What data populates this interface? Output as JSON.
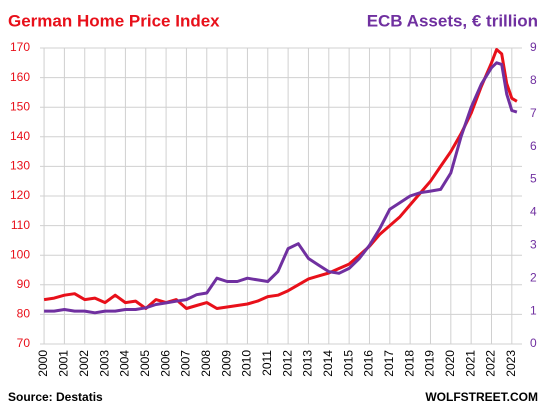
{
  "chart_data": {
    "type": "line",
    "title": "German Home Price Index",
    "y2_title": "ECB Assets, € trillion",
    "source": "Source: Destatis",
    "watermark": "WOLFSTREET.COM",
    "x": [
      2000,
      2000.5,
      2001,
      2001.5,
      2002,
      2002.5,
      2003,
      2003.5,
      2004,
      2004.5,
      2005,
      2005.5,
      2006,
      2006.5,
      2007,
      2007.5,
      2008,
      2008.5,
      2009,
      2009.5,
      2010,
      2010.5,
      2011,
      2011.5,
      2012,
      2012.5,
      2013,
      2013.5,
      2014,
      2014.5,
      2015,
      2015.5,
      2016,
      2016.5,
      2017,
      2017.5,
      2018,
      2018.5,
      2019,
      2019.5,
      2020,
      2020.5,
      2021,
      2021.5,
      2022,
      2022.25,
      2022.5,
      2022.75,
      2023,
      2023.25
    ],
    "series": [
      {
        "name": "German Home Price Index",
        "color": "#e8101a",
        "axis": "y",
        "values": [
          85,
          85.5,
          86.5,
          87,
          85,
          85.5,
          84,
          86.5,
          84,
          84.5,
          82,
          85,
          84,
          85,
          82,
          83,
          84,
          82,
          82.5,
          83,
          83.5,
          84.5,
          86,
          86.5,
          88,
          90,
          92,
          93,
          94,
          95.5,
          97,
          100,
          103,
          107,
          110,
          113,
          117,
          121,
          125,
          130,
          135,
          141,
          148,
          157,
          165,
          169.5,
          168,
          158,
          153,
          152
        ]
      },
      {
        "name": "ECB Assets, € trillion",
        "color": "#7030a0",
        "axis": "y2",
        "values": [
          1.0,
          1.0,
          1.05,
          1.0,
          1.0,
          0.95,
          1.0,
          1.0,
          1.05,
          1.05,
          1.1,
          1.2,
          1.25,
          1.3,
          1.35,
          1.5,
          1.55,
          2.0,
          1.9,
          1.9,
          2.0,
          1.95,
          1.9,
          2.2,
          2.9,
          3.05,
          2.6,
          2.4,
          2.2,
          2.15,
          2.3,
          2.6,
          3.0,
          3.5,
          4.1,
          4.3,
          4.5,
          4.6,
          4.65,
          4.7,
          5.2,
          6.3,
          7.2,
          7.9,
          8.4,
          8.55,
          8.5,
          7.6,
          7.1,
          7.05
        ]
      }
    ],
    "xlim": [
      1999.8,
      2023.5
    ],
    "xticks": [
      2000,
      2001,
      2002,
      2003,
      2004,
      2005,
      2006,
      2007,
      2008,
      2009,
      2010,
      2011,
      2012,
      2013,
      2014,
      2015,
      2016,
      2017,
      2018,
      2019,
      2020,
      2021,
      2022,
      2023
    ],
    "ylim": [
      70,
      170
    ],
    "yticks": [
      70,
      80,
      90,
      100,
      110,
      120,
      130,
      140,
      150,
      160,
      170
    ],
    "y2lim": [
      0,
      9
    ],
    "y2ticks": [
      0,
      1,
      2,
      3,
      4,
      5,
      6,
      7,
      8,
      9
    ],
    "grid": true
  }
}
